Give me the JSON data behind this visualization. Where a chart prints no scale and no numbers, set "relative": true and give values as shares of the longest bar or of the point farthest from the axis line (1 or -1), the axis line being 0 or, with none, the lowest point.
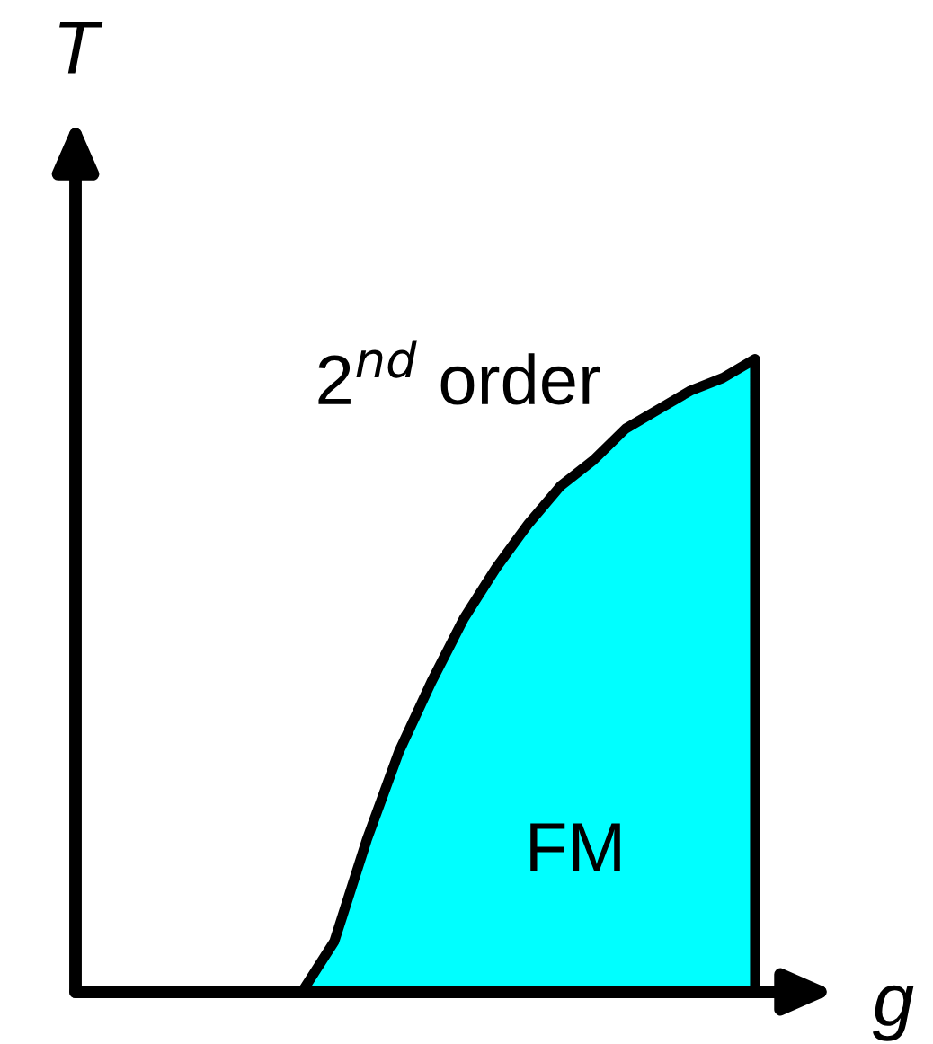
{
  "chart_data": {
    "type": "area",
    "relative": true,
    "xlabel": "g",
    "ylabel": "T",
    "categories": [
      null,
      null,
      null,
      null,
      null,
      null,
      null,
      null,
      null,
      null,
      null,
      null,
      null,
      null,
      null,
      null,
      null,
      null,
      null,
      null,
      null,
      null
    ],
    "values": [
      0,
      0,
      0,
      0,
      0,
      0,
      0,
      0,
      0.08,
      0.24,
      0.38,
      0.49,
      0.59,
      0.67,
      0.74,
      0.8,
      0.84,
      0.89,
      0.92,
      0.95,
      0.97,
      1
    ],
    "color": "#00ffff",
    "annotations": [
      "2$^{nd}$ order",
      "FM"
    ]
  }
}
